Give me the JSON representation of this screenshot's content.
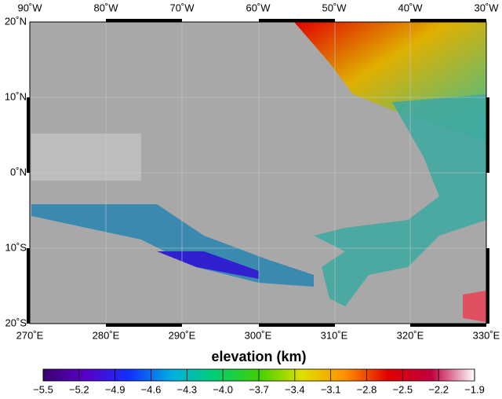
{
  "map": {
    "top_labels": [
      "90˚W",
      "80˚W",
      "70˚W",
      "60˚W",
      "50˚W",
      "40˚W",
      "30˚W"
    ],
    "bottom_labels": [
      "270˚E",
      "280˚E",
      "290˚E",
      "300˚E",
      "310˚E",
      "320˚E",
      "330˚E"
    ],
    "left_labels": [
      "20˚N",
      "10˚N",
      "0˚N",
      "10˚S",
      "20˚S"
    ]
  },
  "colorbar": {
    "label": "elevation (km)",
    "range": [
      -5.5,
      -1.9
    ],
    "colors": [
      "#3a0070",
      "#5a00c8",
      "#1030ff",
      "#00b0e0",
      "#00d070",
      "#40d000",
      "#e0e000",
      "#ff9000",
      "#e00000",
      "#c00040",
      "#ffffff"
    ],
    "ticks": [
      {
        "value": -5.5,
        "label": "−5.5"
      },
      {
        "value": -5.2,
        "label": "−5.2"
      },
      {
        "value": -4.9,
        "label": "−4.9"
      },
      {
        "value": -4.6,
        "label": "−4.6"
      },
      {
        "value": -4.3,
        "label": "−4.3"
      },
      {
        "value": -4.0,
        "label": "−4.0"
      },
      {
        "value": -3.7,
        "label": "−3.7"
      },
      {
        "value": -3.4,
        "label": "−3.4"
      },
      {
        "value": -3.1,
        "label": "−3.1"
      },
      {
        "value": -2.8,
        "label": "−2.8"
      },
      {
        "value": -2.5,
        "label": "−2.5"
      },
      {
        "value": -2.2,
        "label": "−2.2"
      },
      {
        "value": -1.9,
        "label": "−1.9"
      }
    ]
  }
}
